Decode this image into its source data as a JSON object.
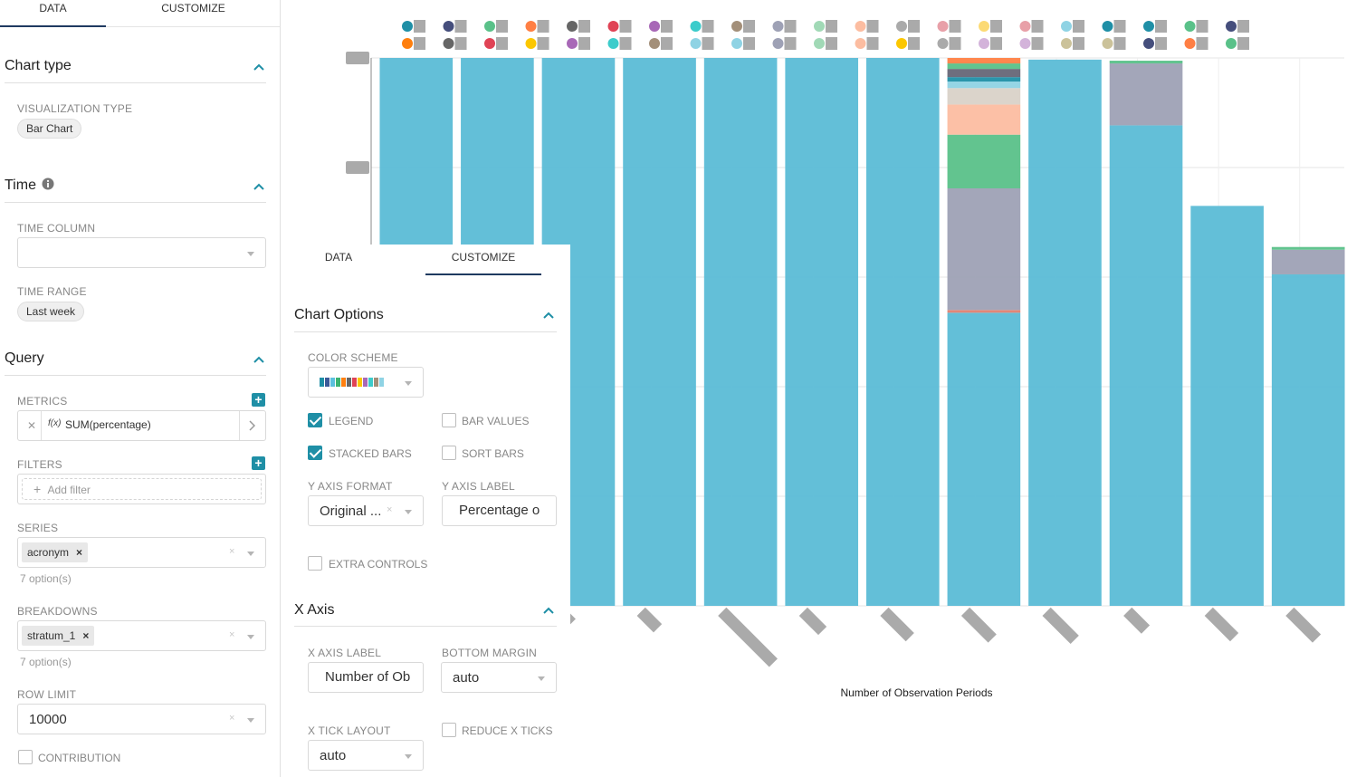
{
  "left_panel": {
    "tabs": [
      {
        "label": "DATA"
      },
      {
        "label": "CUSTOMIZE"
      }
    ],
    "chart_type": {
      "title": "Chart type",
      "viz_label": "VISUALIZATION TYPE",
      "viz_value": "Bar Chart"
    },
    "time": {
      "title": "Time",
      "time_column_label": "TIME COLUMN",
      "time_column_value": "",
      "time_range_label": "TIME RANGE",
      "time_range_value": "Last week"
    },
    "query": {
      "title": "Query",
      "metrics_label": "METRICS",
      "metric_fx": "f(x)",
      "metric_value": "SUM(percentage)",
      "filters_label": "FILTERS",
      "add_filter": "Add filter",
      "series_label": "SERIES",
      "series_tag": "acronym",
      "series_hint": "7 option(s)",
      "breakdowns_label": "BREAKDOWNS",
      "breakdowns_tag": "stratum_1",
      "breakdowns_hint": "7 option(s)",
      "row_limit_label": "ROW LIMIT",
      "row_limit_value": "10000",
      "contribution_label": "CONTRIBUTION",
      "contribution_checked": false
    }
  },
  "customize_panel": {
    "tabs": [
      {
        "label": "DATA"
      },
      {
        "label": "CUSTOMIZE"
      }
    ],
    "active_tab": "CUSTOMIZE",
    "chart_options_title": "Chart Options",
    "color_scheme_label": "COLOR SCHEME",
    "color_scheme_swatches": [
      "#1f8fa6",
      "#3b5998",
      "#5bc0de",
      "#3cb371",
      "#ff7f0e",
      "#666666",
      "#e04355",
      "#fcc700",
      "#a868b7",
      "#3ccccb",
      "#a38f79",
      "#8fd3e4"
    ],
    "legend_label": "LEGEND",
    "legend_checked": true,
    "bar_values_label": "BAR VALUES",
    "bar_values_checked": false,
    "stacked_bars_label": "STACKED BARS",
    "stacked_bars_checked": true,
    "sort_bars_label": "SORT BARS",
    "sort_bars_checked": false,
    "y_axis_format_label": "Y AXIS FORMAT",
    "y_axis_format_value": "Original ...",
    "y_axis_label_label": "Y AXIS LABEL",
    "y_axis_label_value": "Percentage o",
    "extra_controls_label": "EXTRA CONTROLS",
    "extra_controls_checked": false,
    "x_axis_title": "X Axis",
    "x_axis_label_label": "X AXIS LABEL",
    "x_axis_label_value": "Number of Ob",
    "bottom_margin_label": "BOTTOM MARGIN",
    "bottom_margin_value": "auto",
    "x_tick_layout_label": "X TICK LAYOUT",
    "x_tick_layout_value": "auto",
    "reduce_x_ticks_label": "REDUCE X TICKS",
    "reduce_x_ticks_checked": false
  },
  "chart_data": {
    "type": "bar",
    "stacked": true,
    "title": "",
    "xlabel": "Number of Observation Periods",
    "ylabel": "",
    "ylim": [
      0,
      1
    ],
    "grid": true,
    "legend_position": "top",
    "legend_colors": [
      "#1f8fa6",
      "#ff7f0e",
      "#454e7c",
      "#666666",
      "#5ac189",
      "#e04355",
      "#ff7f44",
      "#fcc700",
      "#666666",
      "#a868b7",
      "#e04355",
      "#3ccccb",
      "#a868b7",
      "#a38f79",
      "#3ccccb",
      "#8fd3e4",
      "#a38f79",
      "#8fd3e4",
      "#9ea1b5",
      "#9ea1b5",
      "#a1d9b6",
      "#a1d9b6",
      "#fcbda1",
      "#fcbda1",
      "#aaaaaa",
      "#fcc700",
      "#e8a0a8",
      "#aaaaaa",
      "#fcda74",
      "#d3b3da",
      "#e8a0a8",
      "#d3b3da",
      "#8fd3e4",
      "#cbc29a",
      "#1f8fa6",
      "#cbc29a",
      "#1f8fa6",
      "#454e7c",
      "#5ac189",
      "#ff7f44",
      "#454e7c",
      "#5ac189"
    ],
    "categories": [
      "c1",
      "c2",
      "c3",
      "c4",
      "c5",
      "c6",
      "c7",
      "c8",
      "c9",
      "c10",
      "c11",
      "c12"
    ],
    "series": [
      {
        "color": "#5bbcd6",
        "values": [
          1.0,
          1.0,
          1.0,
          1.0,
          1.0,
          1.0,
          1.0,
          0.535,
          0.997,
          0.877,
          0.73,
          0.605
        ]
      },
      {
        "color": "#e08070",
        "values": [
          0,
          0,
          0,
          0,
          0,
          0,
          0,
          0.005,
          0,
          0,
          0,
          0
        ]
      },
      {
        "color": "#9ea1b5",
        "values": [
          0,
          0,
          0,
          0,
          0,
          0,
          0,
          0.222,
          0,
          0.113,
          0,
          0.045
        ]
      },
      {
        "color": "#5ac189",
        "values": [
          0,
          0,
          0,
          0,
          0,
          0,
          0,
          0.098,
          0,
          0.005,
          0,
          0.005
        ]
      },
      {
        "color": "#fcbda1",
        "values": [
          0,
          0,
          0,
          0,
          0,
          0,
          0,
          0.055,
          0,
          0,
          0,
          0
        ]
      },
      {
        "color": "#d9d2c8",
        "values": [
          0,
          0,
          0,
          0,
          0,
          0,
          0,
          0.03,
          0,
          0,
          0,
          0
        ]
      },
      {
        "color": "#8fd3e4",
        "values": [
          0,
          0,
          0,
          0,
          0,
          0,
          0,
          0.012,
          0,
          0,
          0,
          0
        ]
      },
      {
        "color": "#1f8fa6",
        "values": [
          0,
          0,
          0,
          0,
          0,
          0,
          0,
          0.008,
          0,
          0,
          0,
          0
        ]
      },
      {
        "color": "#666677",
        "values": [
          0,
          0,
          0,
          0,
          0,
          0,
          0,
          0.015,
          0,
          0,
          0,
          0
        ]
      },
      {
        "color": "#5ac189",
        "values": [
          0,
          0,
          0,
          0,
          0,
          0,
          0,
          0.01,
          0,
          0,
          0,
          0
        ]
      },
      {
        "color": "#ff7f44",
        "values": [
          0,
          0,
          0,
          0,
          0,
          0,
          0,
          0.01,
          0,
          0,
          0,
          0
        ]
      }
    ]
  }
}
